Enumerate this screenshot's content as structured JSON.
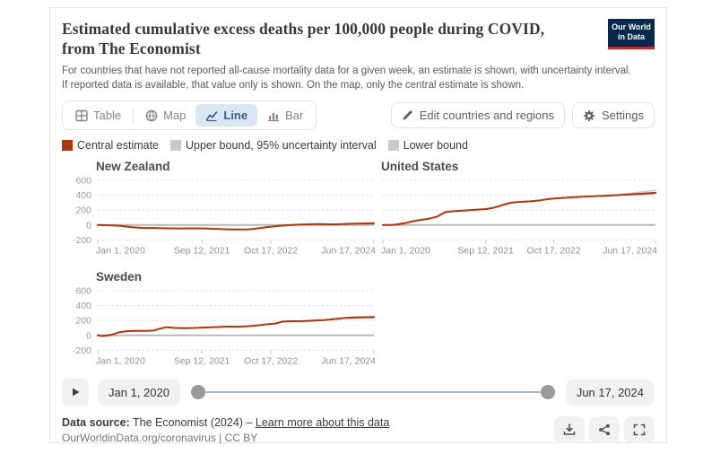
{
  "header": {
    "title": "Estimated cumulative excess deaths per 100,000 people during COVID, from The Economist",
    "subtitle": "For countries that have not reported all-cause mortality data for a given week, an estimate is shown, with uncertainty interval. If reported data is available, that value only is shown. On the map, only the central estimate is shown.",
    "logo": {
      "line1": "Our World",
      "line2": "in Data",
      "bg": "#062a4f",
      "accent": "#c2262e"
    }
  },
  "toolbar": {
    "tabs": [
      {
        "label": "Table",
        "selected": false
      },
      {
        "label": "Map",
        "selected": false
      },
      {
        "label": "Line",
        "selected": true
      },
      {
        "label": "Bar",
        "selected": false
      }
    ],
    "edit_button": "Edit countries and regions",
    "settings_button": "Settings"
  },
  "legend": {
    "items": [
      {
        "label": "Central estimate",
        "color": "#b13507"
      },
      {
        "label": "Upper bound, 95% uncertainty interval",
        "color": "#c9c9c9"
      },
      {
        "label": "Lower bound",
        "color": "#c9c9c9"
      }
    ]
  },
  "chart_data": [
    {
      "type": "line",
      "title": "New Zealand",
      "ylabel": "Excess deaths per 100,000 people",
      "ylim": [
        -200,
        650
      ],
      "yticks": [
        600,
        400,
        200,
        0,
        -200
      ],
      "grid": true,
      "show_y_axis": true,
      "xticks": [
        {
          "label": "Jan 1, 2020",
          "f": 0
        },
        {
          "label": "Sep 12, 2021",
          "f": 0.377
        },
        {
          "label": "Oct 17, 2022",
          "f": 0.627
        },
        {
          "label": "Jun 17, 2024",
          "f": 1
        }
      ],
      "x": [
        0,
        0.04,
        0.08,
        0.12,
        0.16,
        0.2,
        0.25,
        0.3,
        0.35,
        0.4,
        0.45,
        0.5,
        0.55,
        0.58,
        0.62,
        0.66,
        0.7,
        0.75,
        0.8,
        0.85,
        0.9,
        0.95,
        1.0
      ],
      "series": [
        {
          "name": "Upper bound",
          "color": "#c9c9c9",
          "values": [
            0,
            -4,
            -10,
            -28,
            -38,
            -40,
            -44,
            -46,
            -44,
            -48,
            -55,
            -60,
            -58,
            -45,
            -25,
            -10,
            0,
            8,
            12,
            11,
            20,
            28,
            34
          ]
        },
        {
          "name": "Lower bound",
          "color": "#c9c9c9",
          "values": [
            0,
            -4,
            -10,
            -28,
            -38,
            -40,
            -44,
            -46,
            -44,
            -48,
            -55,
            -60,
            -58,
            -45,
            -25,
            -10,
            0,
            8,
            12,
            6,
            9,
            10,
            12
          ]
        },
        {
          "name": "Central estimate",
          "color": "#b13507",
          "values": [
            0,
            -4,
            -10,
            -28,
            -38,
            -40,
            -44,
            -46,
            -44,
            -48,
            -55,
            -60,
            -58,
            -45,
            -25,
            -10,
            0,
            8,
            12,
            8,
            14,
            18,
            22
          ]
        }
      ]
    },
    {
      "type": "line",
      "title": "United States",
      "ylabel": "Excess deaths per 100,000 people",
      "ylim": [
        -200,
        650
      ],
      "yticks": [
        600,
        400,
        200,
        0,
        -200
      ],
      "grid": true,
      "show_y_axis": false,
      "xticks": [
        {
          "label": "Jan 1, 2020",
          "f": 0
        },
        {
          "label": "Sep 12, 2021",
          "f": 0.377
        },
        {
          "label": "Oct 17, 2022",
          "f": 0.627
        },
        {
          "label": "Jun 17, 2024",
          "f": 1
        }
      ],
      "x": [
        0,
        0.04,
        0.08,
        0.11,
        0.14,
        0.17,
        0.2,
        0.23,
        0.26,
        0.3,
        0.34,
        0.38,
        0.41,
        0.44,
        0.47,
        0.5,
        0.54,
        0.58,
        0.61,
        0.65,
        0.7,
        0.75,
        0.8,
        0.85,
        0.9,
        0.95,
        1.0
      ],
      "series": [
        {
          "name": "Upper bound",
          "color": "#c9c9c9",
          "values": [
            0,
            2,
            25,
            50,
            70,
            85,
            115,
            175,
            185,
            195,
            205,
            215,
            235,
            270,
            300,
            310,
            318,
            332,
            350,
            362,
            375,
            383,
            390,
            400,
            420,
            445,
            465
          ]
        },
        {
          "name": "Lower bound",
          "color": "#c9c9c9",
          "values": [
            0,
            2,
            25,
            50,
            70,
            85,
            115,
            175,
            185,
            195,
            205,
            215,
            235,
            270,
            300,
            310,
            318,
            332,
            350,
            362,
            375,
            383,
            390,
            400,
            404,
            409,
            415
          ]
        },
        {
          "name": "Central estimate",
          "color": "#b13507",
          "values": [
            0,
            2,
            25,
            50,
            70,
            85,
            115,
            175,
            185,
            195,
            205,
            215,
            235,
            270,
            300,
            310,
            318,
            332,
            350,
            362,
            375,
            383,
            390,
            400,
            410,
            420,
            432
          ]
        }
      ]
    },
    {
      "type": "line",
      "title": "Sweden",
      "ylabel": "Excess deaths per 100,000 people",
      "ylim": [
        -200,
        650
      ],
      "yticks": [
        600,
        400,
        200,
        0,
        -200
      ],
      "grid": true,
      "show_y_axis": true,
      "xticks": [
        {
          "label": "Jan 1, 2020",
          "f": 0
        },
        {
          "label": "Sep 12, 2021",
          "f": 0.377
        },
        {
          "label": "Oct 17, 2022",
          "f": 0.627
        },
        {
          "label": "Jun 17, 2024",
          "f": 1
        }
      ],
      "x": [
        0,
        0.02,
        0.05,
        0.08,
        0.11,
        0.14,
        0.17,
        0.2,
        0.23,
        0.25,
        0.28,
        0.31,
        0.35,
        0.39,
        0.43,
        0.47,
        0.51,
        0.55,
        0.58,
        0.61,
        0.64,
        0.67,
        0.7,
        0.74,
        0.78,
        0.82,
        0.86,
        0.9,
        0.94,
        1.0
      ],
      "series": [
        {
          "name": "Upper bound",
          "color": "#c9c9c9",
          "values": [
            0,
            -8,
            8,
            45,
            58,
            62,
            60,
            64,
            95,
            110,
            100,
            97,
            100,
            106,
            112,
            118,
            117,
            124,
            135,
            148,
            157,
            185,
            190,
            192,
            197,
            205,
            220,
            235,
            248,
            256
          ]
        },
        {
          "name": "Lower bound",
          "color": "#c9c9c9",
          "values": [
            0,
            -8,
            8,
            45,
            58,
            62,
            60,
            64,
            95,
            110,
            100,
            97,
            100,
            106,
            112,
            118,
            117,
            124,
            135,
            148,
            157,
            185,
            190,
            192,
            197,
            205,
            220,
            232,
            233,
            236
          ]
        },
        {
          "name": "Central estimate",
          "color": "#b13507",
          "values": [
            0,
            -8,
            8,
            45,
            58,
            62,
            60,
            64,
            95,
            110,
            100,
            97,
            100,
            106,
            112,
            118,
            117,
            124,
            135,
            148,
            157,
            185,
            190,
            192,
            197,
            205,
            220,
            235,
            242,
            246
          ]
        }
      ]
    }
  ],
  "timeline": {
    "start": "Jan 1, 2020",
    "end": "Jun 17, 2024"
  },
  "footer": {
    "datasource_label": "Data source:",
    "datasource_text": " The Economist (2024) ",
    "separator": "– ",
    "link": "Learn more about this data",
    "note": "OurWorldinData.org/coronavirus | CC BY"
  }
}
